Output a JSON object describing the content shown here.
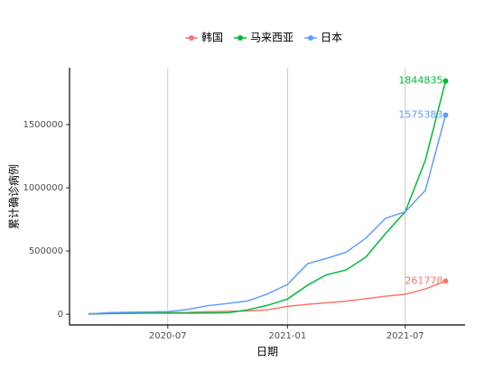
{
  "chart_data": {
    "type": "line",
    "x_label": "日期",
    "y_label": "累计确诊病例",
    "x": [
      "2020-03",
      "2020-04",
      "2020-05",
      "2020-06",
      "2020-07",
      "2020-08",
      "2020-09",
      "2020-10",
      "2020-11",
      "2020-12",
      "2021-01",
      "2021-02",
      "2021-03",
      "2021-04",
      "2021-05",
      "2021-06",
      "2021-07",
      "2021-08",
      "2021-09"
    ],
    "series": [
      {
        "name": "韩国",
        "color": "#f8766d",
        "values": [
          4000,
          10000,
          11000,
          12000,
          13000,
          14000,
          20000,
          23000,
          26000,
          35000,
          62000,
          78000,
          90000,
          103000,
          122000,
          143000,
          158000,
          200000,
          261778
        ]
      },
      {
        "name": "马来西亚",
        "color": "#00ba38",
        "values": [
          1000,
          5000,
          7000,
          8500,
          8600,
          9000,
          9300,
          11000,
          35000,
          70000,
          120000,
          230000,
          310000,
          350000,
          450000,
          640000,
          810000,
          1220000,
          1844835
        ]
      },
      {
        "name": "日本",
        "color": "#619cff",
        "values": [
          1000,
          12000,
          16000,
          18000,
          20000,
          38000,
          68000,
          85000,
          105000,
          160000,
          235000,
          400000,
          440000,
          490000,
          600000,
          760000,
          810000,
          980000,
          1575383
        ]
      }
    ],
    "xlim": [
      "2020-02",
      "2021-10"
    ],
    "xticks": [
      "2020-07",
      "2021-01",
      "2021-07"
    ],
    "ylim": [
      -85000,
      1950000
    ],
    "yticks": [
      0,
      500000,
      1000000,
      1500000
    ],
    "grid": true,
    "legend": "top"
  }
}
